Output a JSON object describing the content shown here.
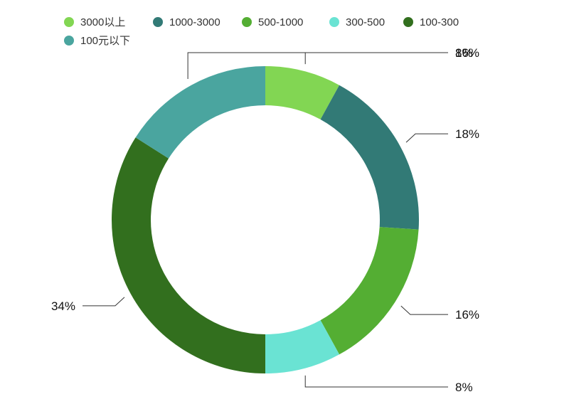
{
  "chart_data": {
    "type": "pie",
    "variant": "donut",
    "title": "",
    "legend_position": "top-left",
    "categories": [
      "3000以上",
      "1000-3000",
      "500-1000",
      "300-500",
      "100-300",
      "100元以下"
    ],
    "values": [
      8,
      18,
      16,
      8,
      34,
      16
    ],
    "labels": [
      "8%",
      "18%",
      "16%",
      "8%",
      "34%",
      "16%"
    ],
    "colors": [
      "#82d653",
      "#327a76",
      "#54ae33",
      "#6ae3d3",
      "#326f1e",
      "#4aa59f"
    ]
  }
}
